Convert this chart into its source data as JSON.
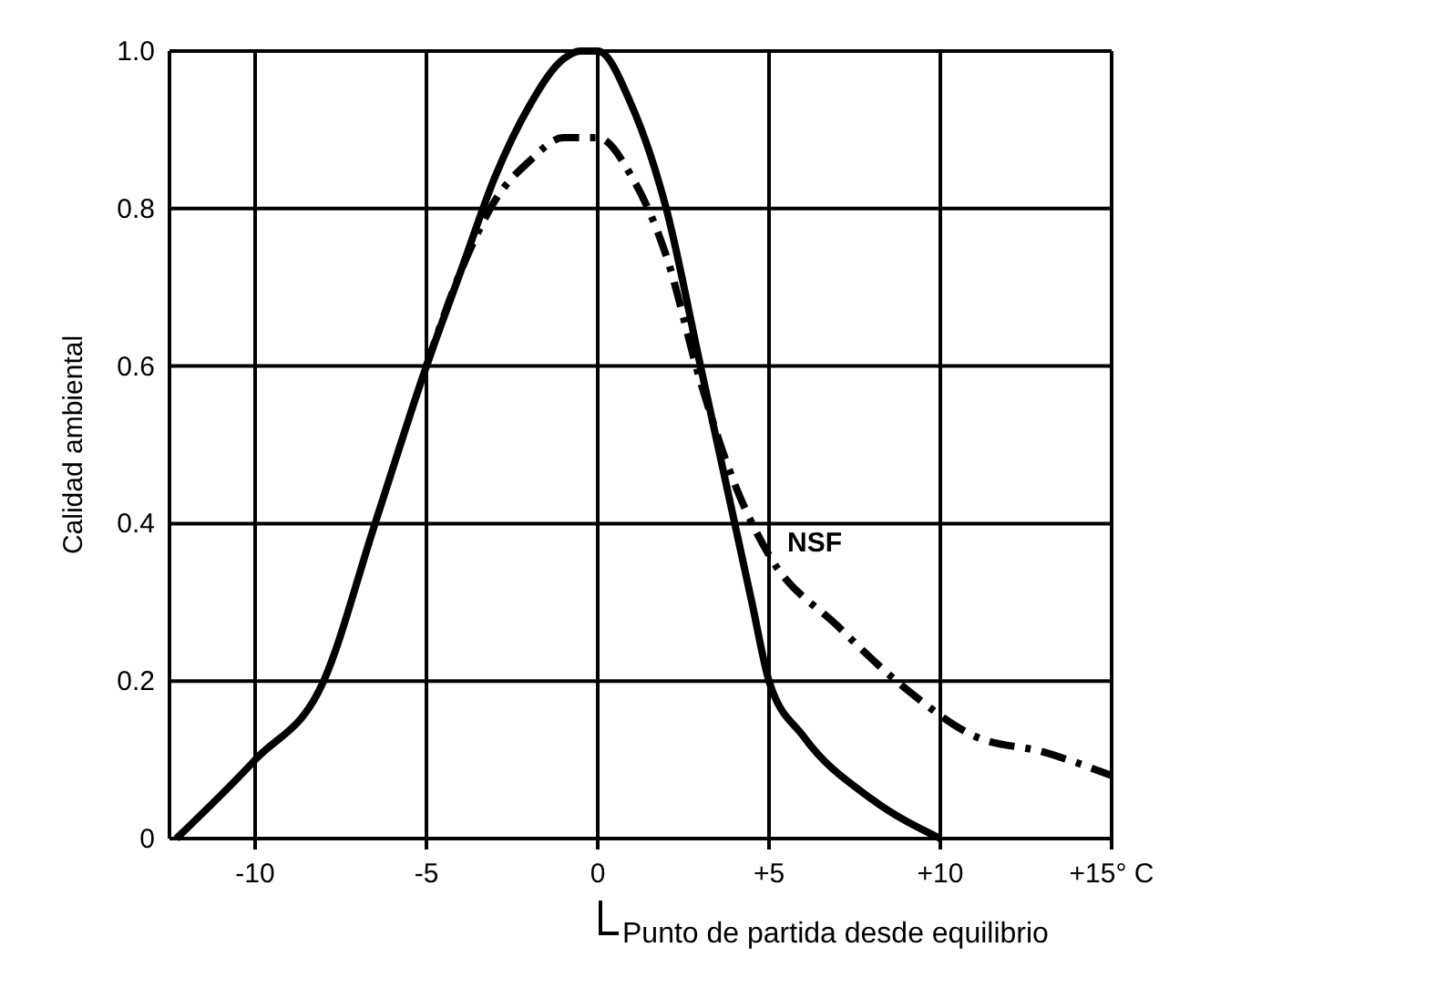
{
  "chart_data": {
    "type": "line",
    "ylabel": "Calidad ambiental",
    "xlim": [
      -12.5,
      15
    ],
    "ylim": [
      0,
      1
    ],
    "xticks": [
      {
        "value": -10,
        "label": "-10"
      },
      {
        "value": -5,
        "label": "-5"
      },
      {
        "value": 0,
        "label": "0"
      },
      {
        "value": 5,
        "label": "+5"
      },
      {
        "value": 10,
        "label": "+10"
      },
      {
        "value": 15,
        "label": "+15° C"
      }
    ],
    "yticks": [
      {
        "value": 0,
        "label": "0"
      },
      {
        "value": 0.2,
        "label": "0.2"
      },
      {
        "value": 0.4,
        "label": "0.4"
      },
      {
        "value": 0.6,
        "label": "0.6"
      },
      {
        "value": 0.8,
        "label": "0.8"
      },
      {
        "value": 1,
        "label": "1.0"
      }
    ],
    "grid": true,
    "annotations": [
      "Punto de partida desde equilibrio"
    ],
    "series": [
      {
        "color": "#000000",
        "line_style": "solid",
        "x": [
          -12.3,
          -10,
          -8,
          -6.5,
          -5,
          -4,
          -3,
          -2,
          -1,
          -0.5,
          0,
          1,
          2,
          3,
          4,
          4.5,
          5,
          6,
          8,
          10
        ],
        "values": [
          0,
          0.1,
          0.2,
          0.4,
          0.6,
          0.72,
          0.84,
          0.93,
          0.99,
          1,
          1,
          0.93,
          0.8,
          0.6,
          0.4,
          0.3,
          0.2,
          0.13,
          0.05,
          0
        ]
      },
      {
        "name": "NSF",
        "color": "#000000",
        "line_style": "dashed",
        "x": [
          -5,
          -4,
          -3,
          -2,
          -1,
          0,
          1,
          2,
          3,
          4,
          5,
          7,
          9,
          11,
          13,
          15
        ],
        "values": [
          0.6,
          0.72,
          0.81,
          0.86,
          0.89,
          0.89,
          0.84,
          0.74,
          0.58,
          0.45,
          0.36,
          0.27,
          0.19,
          0.13,
          0.11,
          0.08
        ]
      }
    ]
  }
}
